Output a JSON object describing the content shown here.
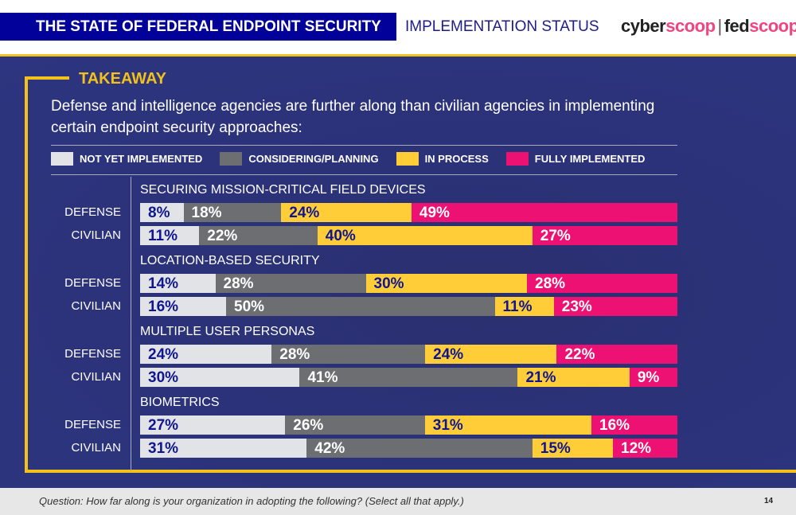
{
  "header": {
    "title": "THE STATE OF FEDERAL ENDPOINT SECURITY",
    "subtitle": "IMPLEMENTATION STATUS",
    "logo_left_a": "cyber",
    "logo_left_b": "scoop",
    "logo_sep": "|",
    "logo_right_a": "fed",
    "logo_right_b": "scoop"
  },
  "takeaway": {
    "label": "TAKEAWAY",
    "text": "Defense and intelligence agencies are further along than civilian agencies in implementing certain endpoint security approaches:"
  },
  "footer": {
    "question": "Question: How far along is your organization in adopting the following? (Select all that apply.)",
    "page": "14"
  },
  "chart_data": {
    "type": "bar",
    "stacked": true,
    "orientation": "horizontal",
    "legend": [
      {
        "name": "NOT YET IMPLEMENTED",
        "color": "#e2e3e6",
        "text_color": "#0f1690"
      },
      {
        "name": "CONSIDERING/PLANNING",
        "color": "#6d6e72",
        "text_color": "#ffffff"
      },
      {
        "name": "IN PROCESS",
        "color": "#ffcd37",
        "text_color": "#0f1690"
      },
      {
        "name": "FULLY IMPLEMENTED",
        "color": "#ec1172",
        "text_color": "#ffffff"
      }
    ],
    "groups": [
      {
        "title": "SECURING MISSION-CRITICAL FIELD DEVICES",
        "rows": [
          {
            "label": "DEFENSE",
            "values": [
              8,
              18,
              24,
              49
            ]
          },
          {
            "label": "CIVILIAN",
            "values": [
              11,
              22,
              40,
              27
            ]
          }
        ]
      },
      {
        "title": "LOCATION-BASED SECURITY",
        "rows": [
          {
            "label": "DEFENSE",
            "values": [
              14,
              28,
              30,
              28
            ]
          },
          {
            "label": "CIVILIAN",
            "values": [
              16,
              50,
              11,
              23
            ]
          }
        ]
      },
      {
        "title": "MULTIPLE USER PERSONAS",
        "rows": [
          {
            "label": "DEFENSE",
            "values": [
              24,
              28,
              24,
              22
            ]
          },
          {
            "label": "CIVILIAN",
            "values": [
              30,
              41,
              21,
              9
            ]
          }
        ]
      },
      {
        "title": "BIOMETRICS",
        "rows": [
          {
            "label": "DEFENSE",
            "values": [
              27,
              26,
              31,
              16
            ]
          },
          {
            "label": "CIVILIAN",
            "values": [
              31,
              42,
              15,
              12
            ]
          }
        ]
      }
    ],
    "unit": "%"
  }
}
